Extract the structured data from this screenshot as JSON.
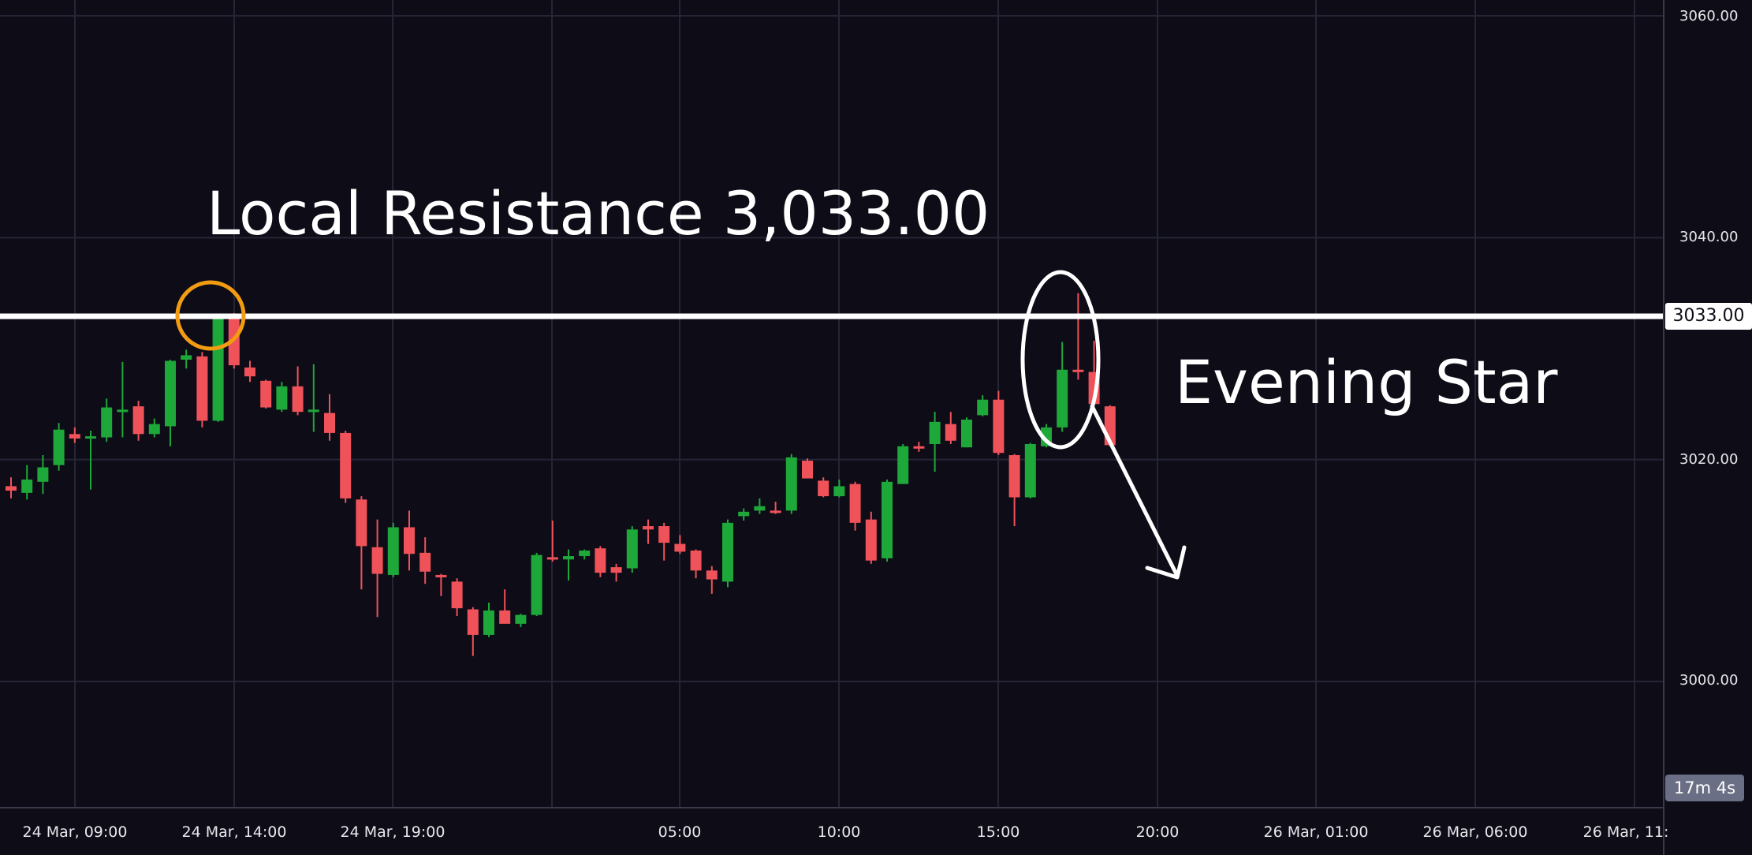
{
  "chart_data": {
    "type": "candlestick",
    "ylim": [
      2990,
      3062
    ],
    "y_ticks": [
      "3060.00",
      "3040.00",
      "3020.00",
      "3000.00"
    ],
    "x_ticks": [
      "24 Mar, 09:00",
      "24 Mar, 14:00",
      "24 Mar, 19:00",
      "05:00",
      "10:00",
      "15:00",
      "20:00",
      "26 Mar, 01:00",
      "26 Mar, 06:00",
      "26 Mar, 11:"
    ],
    "grid": true,
    "resistance_level": 3033.0,
    "resistance_label": "3033.00",
    "countdown": "17m 4s",
    "annotations": {
      "resistance_text": "Local Resistance 3,033.00",
      "pattern_text": "Evening Star"
    },
    "candles": [
      {
        "o": 3017.6,
        "h": 3018.4,
        "l": 3016.5,
        "c": 3017.2,
        "bull": false
      },
      {
        "o": 3017.0,
        "h": 3019.5,
        "l": 3016.4,
        "c": 3018.2,
        "bull": true
      },
      {
        "o": 3018.0,
        "h": 3020.4,
        "l": 3016.9,
        "c": 3019.3,
        "bull": true
      },
      {
        "o": 3019.5,
        "h": 3023.3,
        "l": 3019.0,
        "c": 3022.7,
        "bull": true
      },
      {
        "o": 3022.3,
        "h": 3022.9,
        "l": 3021.5,
        "c": 3021.9,
        "bull": false
      },
      {
        "o": 3022.0,
        "h": 3022.6,
        "l": 3017.3,
        "c": 3022.1,
        "bull": true
      },
      {
        "o": 3022.0,
        "h": 3025.5,
        "l": 3021.6,
        "c": 3024.7,
        "bull": true
      },
      {
        "o": 3024.4,
        "h": 3028.8,
        "l": 3022.0,
        "c": 3024.5,
        "bull": true
      },
      {
        "o": 3024.8,
        "h": 3025.3,
        "l": 3021.7,
        "c": 3022.3,
        "bull": false
      },
      {
        "o": 3022.3,
        "h": 3023.7,
        "l": 3022.0,
        "c": 3023.2,
        "bull": true
      },
      {
        "o": 3023.0,
        "h": 3029.0,
        "l": 3021.2,
        "c": 3028.9,
        "bull": true
      },
      {
        "o": 3029.0,
        "h": 3029.9,
        "l": 3028.2,
        "c": 3029.4,
        "bull": true
      },
      {
        "o": 3029.3,
        "h": 3029.7,
        "l": 3022.9,
        "c": 3023.5,
        "bull": false
      },
      {
        "o": 3023.5,
        "h": 3033.0,
        "l": 3023.4,
        "c": 3033.0,
        "bull": true
      },
      {
        "o": 3033.0,
        "h": 3033.2,
        "l": 3028.2,
        "c": 3028.5,
        "bull": false
      },
      {
        "o": 3028.3,
        "h": 3028.9,
        "l": 3027.0,
        "c": 3027.5,
        "bull": false
      },
      {
        "o": 3027.1,
        "h": 3027.2,
        "l": 3024.6,
        "c": 3024.7,
        "bull": false
      },
      {
        "o": 3024.5,
        "h": 3027.0,
        "l": 3024.3,
        "c": 3026.6,
        "bull": true
      },
      {
        "o": 3026.6,
        "h": 3028.4,
        "l": 3024.0,
        "c": 3024.3,
        "bull": false
      },
      {
        "o": 3024.4,
        "h": 3028.6,
        "l": 3022.5,
        "c": 3024.5,
        "bull": true
      },
      {
        "o": 3024.2,
        "h": 3025.9,
        "l": 3021.7,
        "c": 3022.4,
        "bull": false
      },
      {
        "o": 3022.4,
        "h": 3022.6,
        "l": 3016.1,
        "c": 3016.5,
        "bull": false
      },
      {
        "o": 3016.4,
        "h": 3016.7,
        "l": 3008.3,
        "c": 3012.2,
        "bull": false
      },
      {
        "o": 3012.1,
        "h": 3014.6,
        "l": 3005.8,
        "c": 3009.7,
        "bull": false
      },
      {
        "o": 3009.6,
        "h": 3014.3,
        "l": 3009.4,
        "c": 3013.9,
        "bull": true
      },
      {
        "o": 3013.9,
        "h": 3015.4,
        "l": 3010.0,
        "c": 3011.5,
        "bull": false
      },
      {
        "o": 3011.6,
        "h": 3013.0,
        "l": 3008.8,
        "c": 3009.9,
        "bull": false
      },
      {
        "o": 3009.6,
        "h": 3009.7,
        "l": 3007.7,
        "c": 3009.4,
        "bull": false
      },
      {
        "o": 3009.0,
        "h": 3009.3,
        "l": 3005.9,
        "c": 3006.6,
        "bull": false
      },
      {
        "o": 3006.5,
        "h": 3006.7,
        "l": 3002.3,
        "c": 3004.2,
        "bull": false
      },
      {
        "o": 3004.2,
        "h": 3007.1,
        "l": 3004.0,
        "c": 3006.4,
        "bull": true
      },
      {
        "o": 3006.4,
        "h": 3008.3,
        "l": 3005.3,
        "c": 3005.2,
        "bull": false
      },
      {
        "o": 3005.2,
        "h": 3006.1,
        "l": 3004.9,
        "c": 3006.0,
        "bull": true
      },
      {
        "o": 3006.0,
        "h": 3011.6,
        "l": 3005.9,
        "c": 3011.4,
        "bull": true
      },
      {
        "o": 3011.1,
        "h": 3014.5,
        "l": 3010.8,
        "c": 3011.2,
        "bull": false
      },
      {
        "o": 3011.0,
        "h": 3011.9,
        "l": 3009.1,
        "c": 3011.3,
        "bull": true
      },
      {
        "o": 3011.3,
        "h": 3011.9,
        "l": 3011.0,
        "c": 3011.8,
        "bull": true
      },
      {
        "o": 3012.0,
        "h": 3012.2,
        "l": 3009.4,
        "c": 3009.8,
        "bull": false
      },
      {
        "o": 3009.8,
        "h": 3010.6,
        "l": 3009.0,
        "c": 3010.3,
        "bull": false
      },
      {
        "o": 3010.2,
        "h": 3014.0,
        "l": 3009.8,
        "c": 3013.7,
        "bull": true
      },
      {
        "o": 3013.7,
        "h": 3014.6,
        "l": 3012.4,
        "c": 3014.0,
        "bull": false
      },
      {
        "o": 3014.0,
        "h": 3014.3,
        "l": 3010.9,
        "c": 3012.5,
        "bull": false
      },
      {
        "o": 3012.4,
        "h": 3013.2,
        "l": 3011.5,
        "c": 3011.7,
        "bull": false
      },
      {
        "o": 3011.8,
        "h": 3011.9,
        "l": 3009.3,
        "c": 3010.0,
        "bull": false
      },
      {
        "o": 3010.0,
        "h": 3010.4,
        "l": 3007.9,
        "c": 3009.2,
        "bull": false
      },
      {
        "o": 3009.0,
        "h": 3014.6,
        "l": 3008.5,
        "c": 3014.3,
        "bull": true
      },
      {
        "o": 3014.9,
        "h": 3015.6,
        "l": 3014.5,
        "c": 3015.3,
        "bull": true
      },
      {
        "o": 3015.4,
        "h": 3016.5,
        "l": 3015.1,
        "c": 3015.8,
        "bull": true
      },
      {
        "o": 3015.4,
        "h": 3016.2,
        "l": 3015.1,
        "c": 3015.3,
        "bull": false
      },
      {
        "o": 3015.4,
        "h": 3020.5,
        "l": 3015.1,
        "c": 3020.2,
        "bull": true
      },
      {
        "o": 3019.9,
        "h": 3020.1,
        "l": 3018.3,
        "c": 3018.3,
        "bull": false
      },
      {
        "o": 3018.1,
        "h": 3018.4,
        "l": 3016.6,
        "c": 3016.7,
        "bull": false
      },
      {
        "o": 3016.7,
        "h": 3018.2,
        "l": 3016.6,
        "c": 3017.6,
        "bull": true
      },
      {
        "o": 3017.8,
        "h": 3018.0,
        "l": 3013.6,
        "c": 3014.3,
        "bull": false
      },
      {
        "o": 3014.6,
        "h": 3015.3,
        "l": 3010.6,
        "c": 3010.9,
        "bull": false
      },
      {
        "o": 3011.1,
        "h": 3018.2,
        "l": 3010.8,
        "c": 3018.0,
        "bull": true
      },
      {
        "o": 3017.8,
        "h": 3021.4,
        "l": 3017.8,
        "c": 3021.2,
        "bull": true
      },
      {
        "o": 3021.2,
        "h": 3021.6,
        "l": 3020.7,
        "c": 3021.0,
        "bull": false
      },
      {
        "o": 3021.4,
        "h": 3024.3,
        "l": 3018.9,
        "c": 3023.4,
        "bull": true
      },
      {
        "o": 3023.2,
        "h": 3024.3,
        "l": 3021.4,
        "c": 3021.7,
        "bull": false
      },
      {
        "o": 3021.1,
        "h": 3023.8,
        "l": 3021.1,
        "c": 3023.6,
        "bull": true
      },
      {
        "o": 3024.0,
        "h": 3025.8,
        "l": 3023.9,
        "c": 3025.4,
        "bull": true
      },
      {
        "o": 3025.4,
        "h": 3026.2,
        "l": 3020.4,
        "c": 3020.6,
        "bull": false
      },
      {
        "o": 3020.4,
        "h": 3020.5,
        "l": 3014.0,
        "c": 3016.6,
        "bull": false
      },
      {
        "o": 3016.6,
        "h": 3021.5,
        "l": 3016.5,
        "c": 3021.4,
        "bull": true
      },
      {
        "o": 3021.2,
        "h": 3023.2,
        "l": 3021.1,
        "c": 3022.9,
        "bull": true
      },
      {
        "o": 3022.9,
        "h": 3030.6,
        "l": 3022.5,
        "c": 3028.1,
        "bull": true
      },
      {
        "o": 3028.1,
        "h": 3035.0,
        "l": 3027.2,
        "c": 3027.9,
        "bull": false
      },
      {
        "o": 3027.9,
        "h": 3030.7,
        "l": 3025.5,
        "c": 3025.0,
        "bull": false
      },
      {
        "o": 3024.8,
        "h": 3024.9,
        "l": 3021.2,
        "c": 3021.3,
        "bull": false
      }
    ]
  }
}
